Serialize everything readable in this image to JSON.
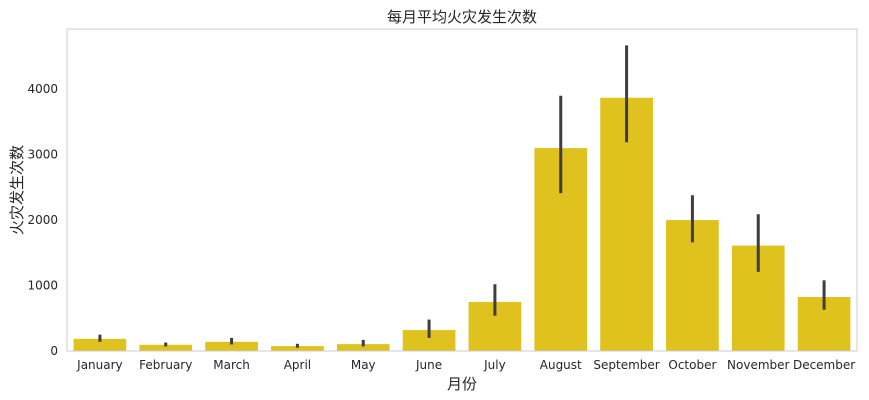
{
  "chart_data": {
    "type": "bar",
    "title": "每月平均火灾发生次数",
    "xlabel": "月份",
    "ylabel": "火灾发生次数",
    "categories": [
      "January",
      "February",
      "March",
      "April",
      "May",
      "June",
      "July",
      "August",
      "September",
      "October",
      "November",
      "December"
    ],
    "values": [
      185,
      95,
      140,
      75,
      105,
      320,
      750,
      3100,
      3870,
      2000,
      1610,
      825
    ],
    "error_low": [
      140,
      70,
      100,
      50,
      70,
      200,
      540,
      2410,
      3190,
      1660,
      1210,
      630
    ],
    "error_high": [
      250,
      130,
      200,
      110,
      170,
      480,
      1020,
      3900,
      4670,
      2380,
      2090,
      1080
    ],
    "ylim": [
      0,
      4920
    ],
    "yticks": [
      0,
      1000,
      2000,
      3000,
      4000
    ],
    "grid": false,
    "colors": {
      "bar": "#dfc21e",
      "error_bar": "#3e3e3e",
      "axes_edge": "#cccccc",
      "text": "#262626"
    }
  }
}
